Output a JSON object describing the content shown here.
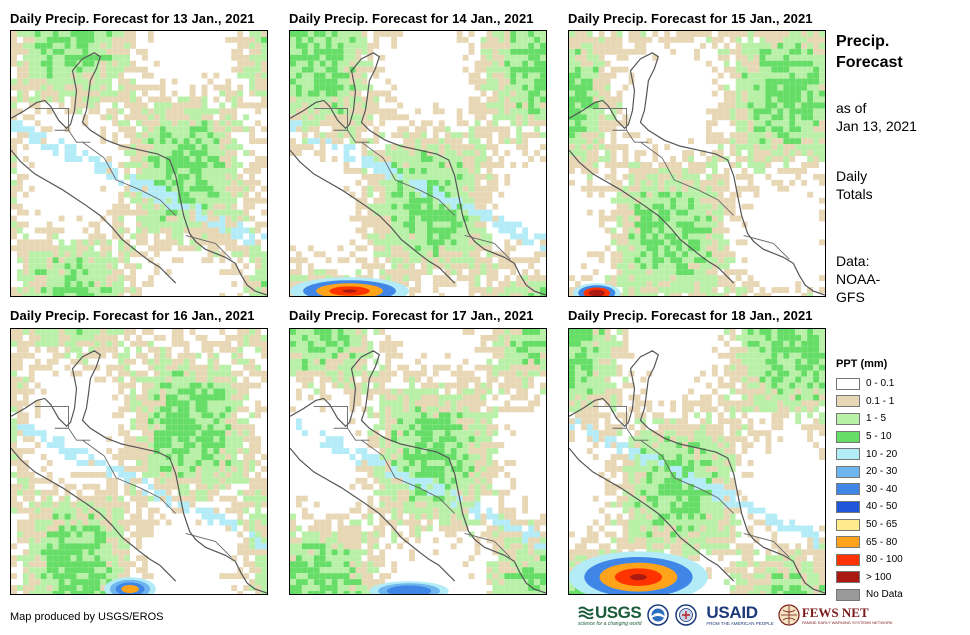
{
  "panels": [
    {
      "title": "Daily Precip. Forecast for 13 Jan., 2021",
      "day": "13 Jan., 2021",
      "heavy": []
    },
    {
      "title": "Daily Precip. Forecast for 14 Jan., 2021",
      "day": "14 Jan., 2021",
      "heavy": [
        "south-edge"
      ]
    },
    {
      "title": "Daily Precip. Forecast for 15 Jan., 2021",
      "day": "15 Jan., 2021",
      "heavy": [
        "south-west-corner"
      ]
    },
    {
      "title": "Daily Precip. Forecast for 16 Jan., 2021",
      "day": "16 Jan., 2021",
      "heavy": [
        "south-center"
      ]
    },
    {
      "title": "Daily Precip. Forecast for 17 Jan., 2021",
      "day": "17 Jan., 2021",
      "heavy": [
        "south-west-edge"
      ]
    },
    {
      "title": "Daily Precip. Forecast for 18 Jan., 2021",
      "day": "18 Jan., 2021",
      "heavy": [
        "south-west-large"
      ]
    }
  ],
  "side": {
    "heading_line1": "Precip.",
    "heading_line2": "Forecast",
    "asof_line1": "as of",
    "asof_line2": "Jan 13, 2021",
    "totals_line1": "Daily",
    "totals_line2": "Totals",
    "data_line1": "Data:",
    "data_line2": "NOAA-",
    "data_line3": "GFS"
  },
  "legend": {
    "title": "PPT (mm)",
    "items": [
      {
        "label": "0 - 0.1",
        "color": "#ffffff"
      },
      {
        "label": "0.1 - 1",
        "color": "#e8d7b5"
      },
      {
        "label": "1 - 5",
        "color": "#b8f0a8"
      },
      {
        "label": "5 - 10",
        "color": "#66dd66"
      },
      {
        "label": "10 - 20",
        "color": "#b3ecf7"
      },
      {
        "label": "20 - 30",
        "color": "#6fb6ef"
      },
      {
        "label": "30 - 40",
        "color": "#3f86e6"
      },
      {
        "label": "40 - 50",
        "color": "#1f56d9"
      },
      {
        "label": "50 - 65",
        "color": "#ffea8c"
      },
      {
        "label": "65 - 80",
        "color": "#ffa31a"
      },
      {
        "label": "80 - 100",
        "color": "#ff3300"
      },
      {
        "label": "> 100",
        "color": "#aa1a12"
      },
      {
        "label": "No Data",
        "color": "#999999"
      }
    ]
  },
  "credit": "Map produced by USGS/EROS",
  "logos": {
    "usgs": "USGS",
    "usgs_tag": "science for a changing world",
    "usaid": "USAID",
    "usaid_tag": "FROM THE AMERICAN PEOPLE",
    "fews": "FEWS NET",
    "fews_tag": "FAMINE EARLY WARNING SYSTEMS NETWORK"
  }
}
